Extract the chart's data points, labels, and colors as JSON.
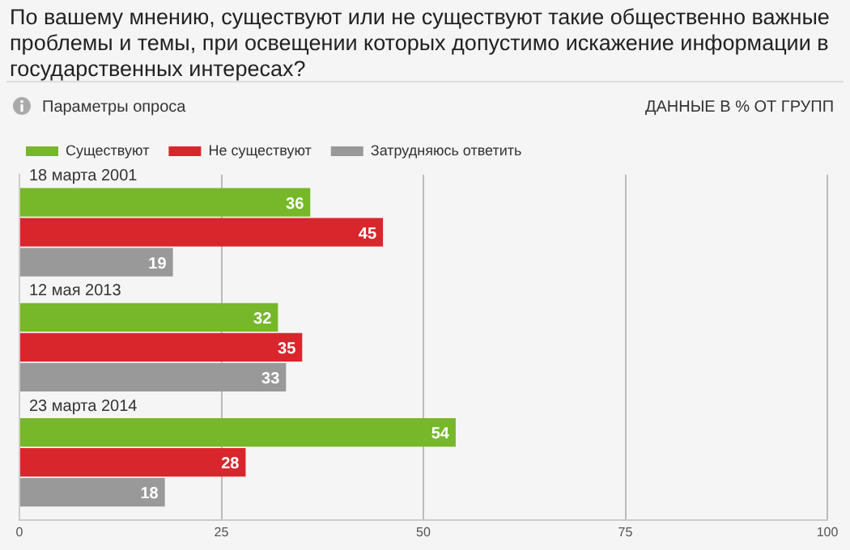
{
  "chart_data": {
    "type": "bar",
    "orientation": "horizontal",
    "title": "По вашему мнению, существуют или не существуют такие общественно важные проблемы и темы, при освещении которых допустимо искажение информации в государственных интересах?",
    "annotations": [
      "Параметры опроса",
      "ДАННЫЕ В % ОТ ГРУПП"
    ],
    "categories": [
      "18 марта 2001",
      "12 мая 2013",
      "23 марта 2014"
    ],
    "series": [
      {
        "name": "Существуют",
        "color": "#76b82a",
        "values": [
          36,
          32,
          54
        ]
      },
      {
        "name": "Не существуют",
        "color": "#d9262c",
        "values": [
          45,
          35,
          28
        ]
      },
      {
        "name": "Затрудняюсь ответить",
        "color": "#999999",
        "values": [
          19,
          33,
          18
        ]
      }
    ],
    "xlim": [
      0,
      100
    ],
    "xticks": [
      0,
      25,
      50,
      75,
      100
    ],
    "grid": "x",
    "legend": "top left",
    "data_labels": true
  }
}
